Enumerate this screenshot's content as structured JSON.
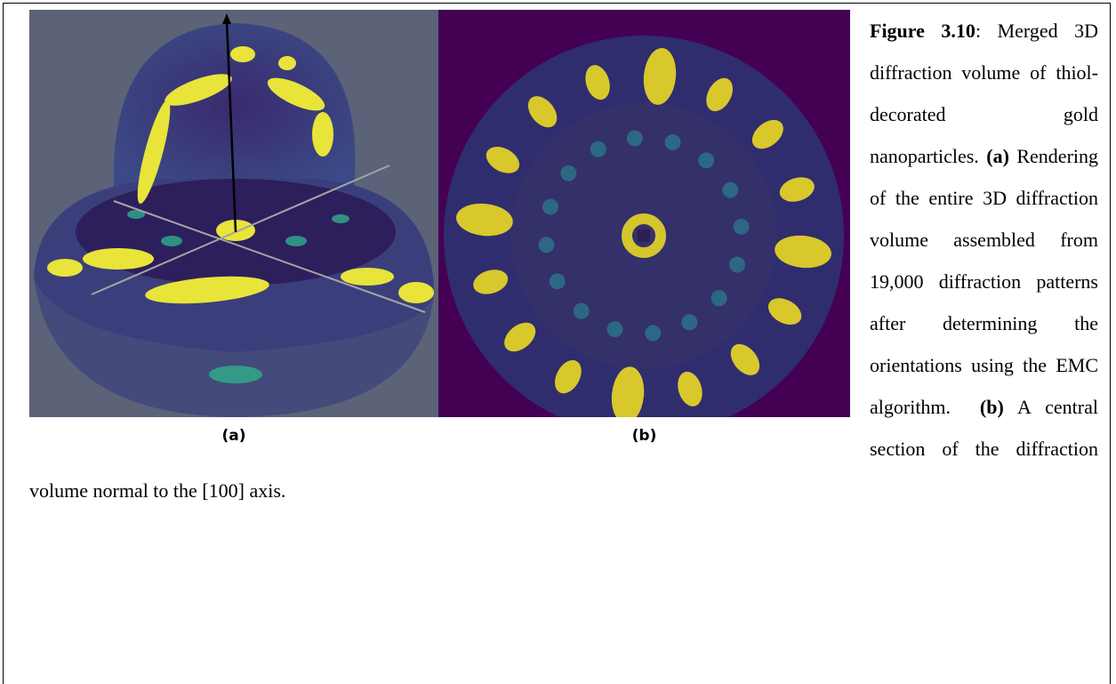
{
  "figure": {
    "panels": [
      {
        "label": "(a)"
      },
      {
        "label": "(b)"
      }
    ],
    "caption": {
      "figure_label": "Figure 3.10",
      "separator": ":",
      "intro": "Merged 3D diffraction volume of thiol-decorated gold nanoparticles.",
      "parts": [
        {
          "label": "(a)",
          "text": "Rendering of the entire 3D diffraction volume assembled from 19,000 diffraction patterns after determining the orientations using the EMC algorithm."
        },
        {
          "label": "(b)",
          "text": "A central section of the diffraction volume normal to the [100] axis."
        }
      ]
    }
  }
}
